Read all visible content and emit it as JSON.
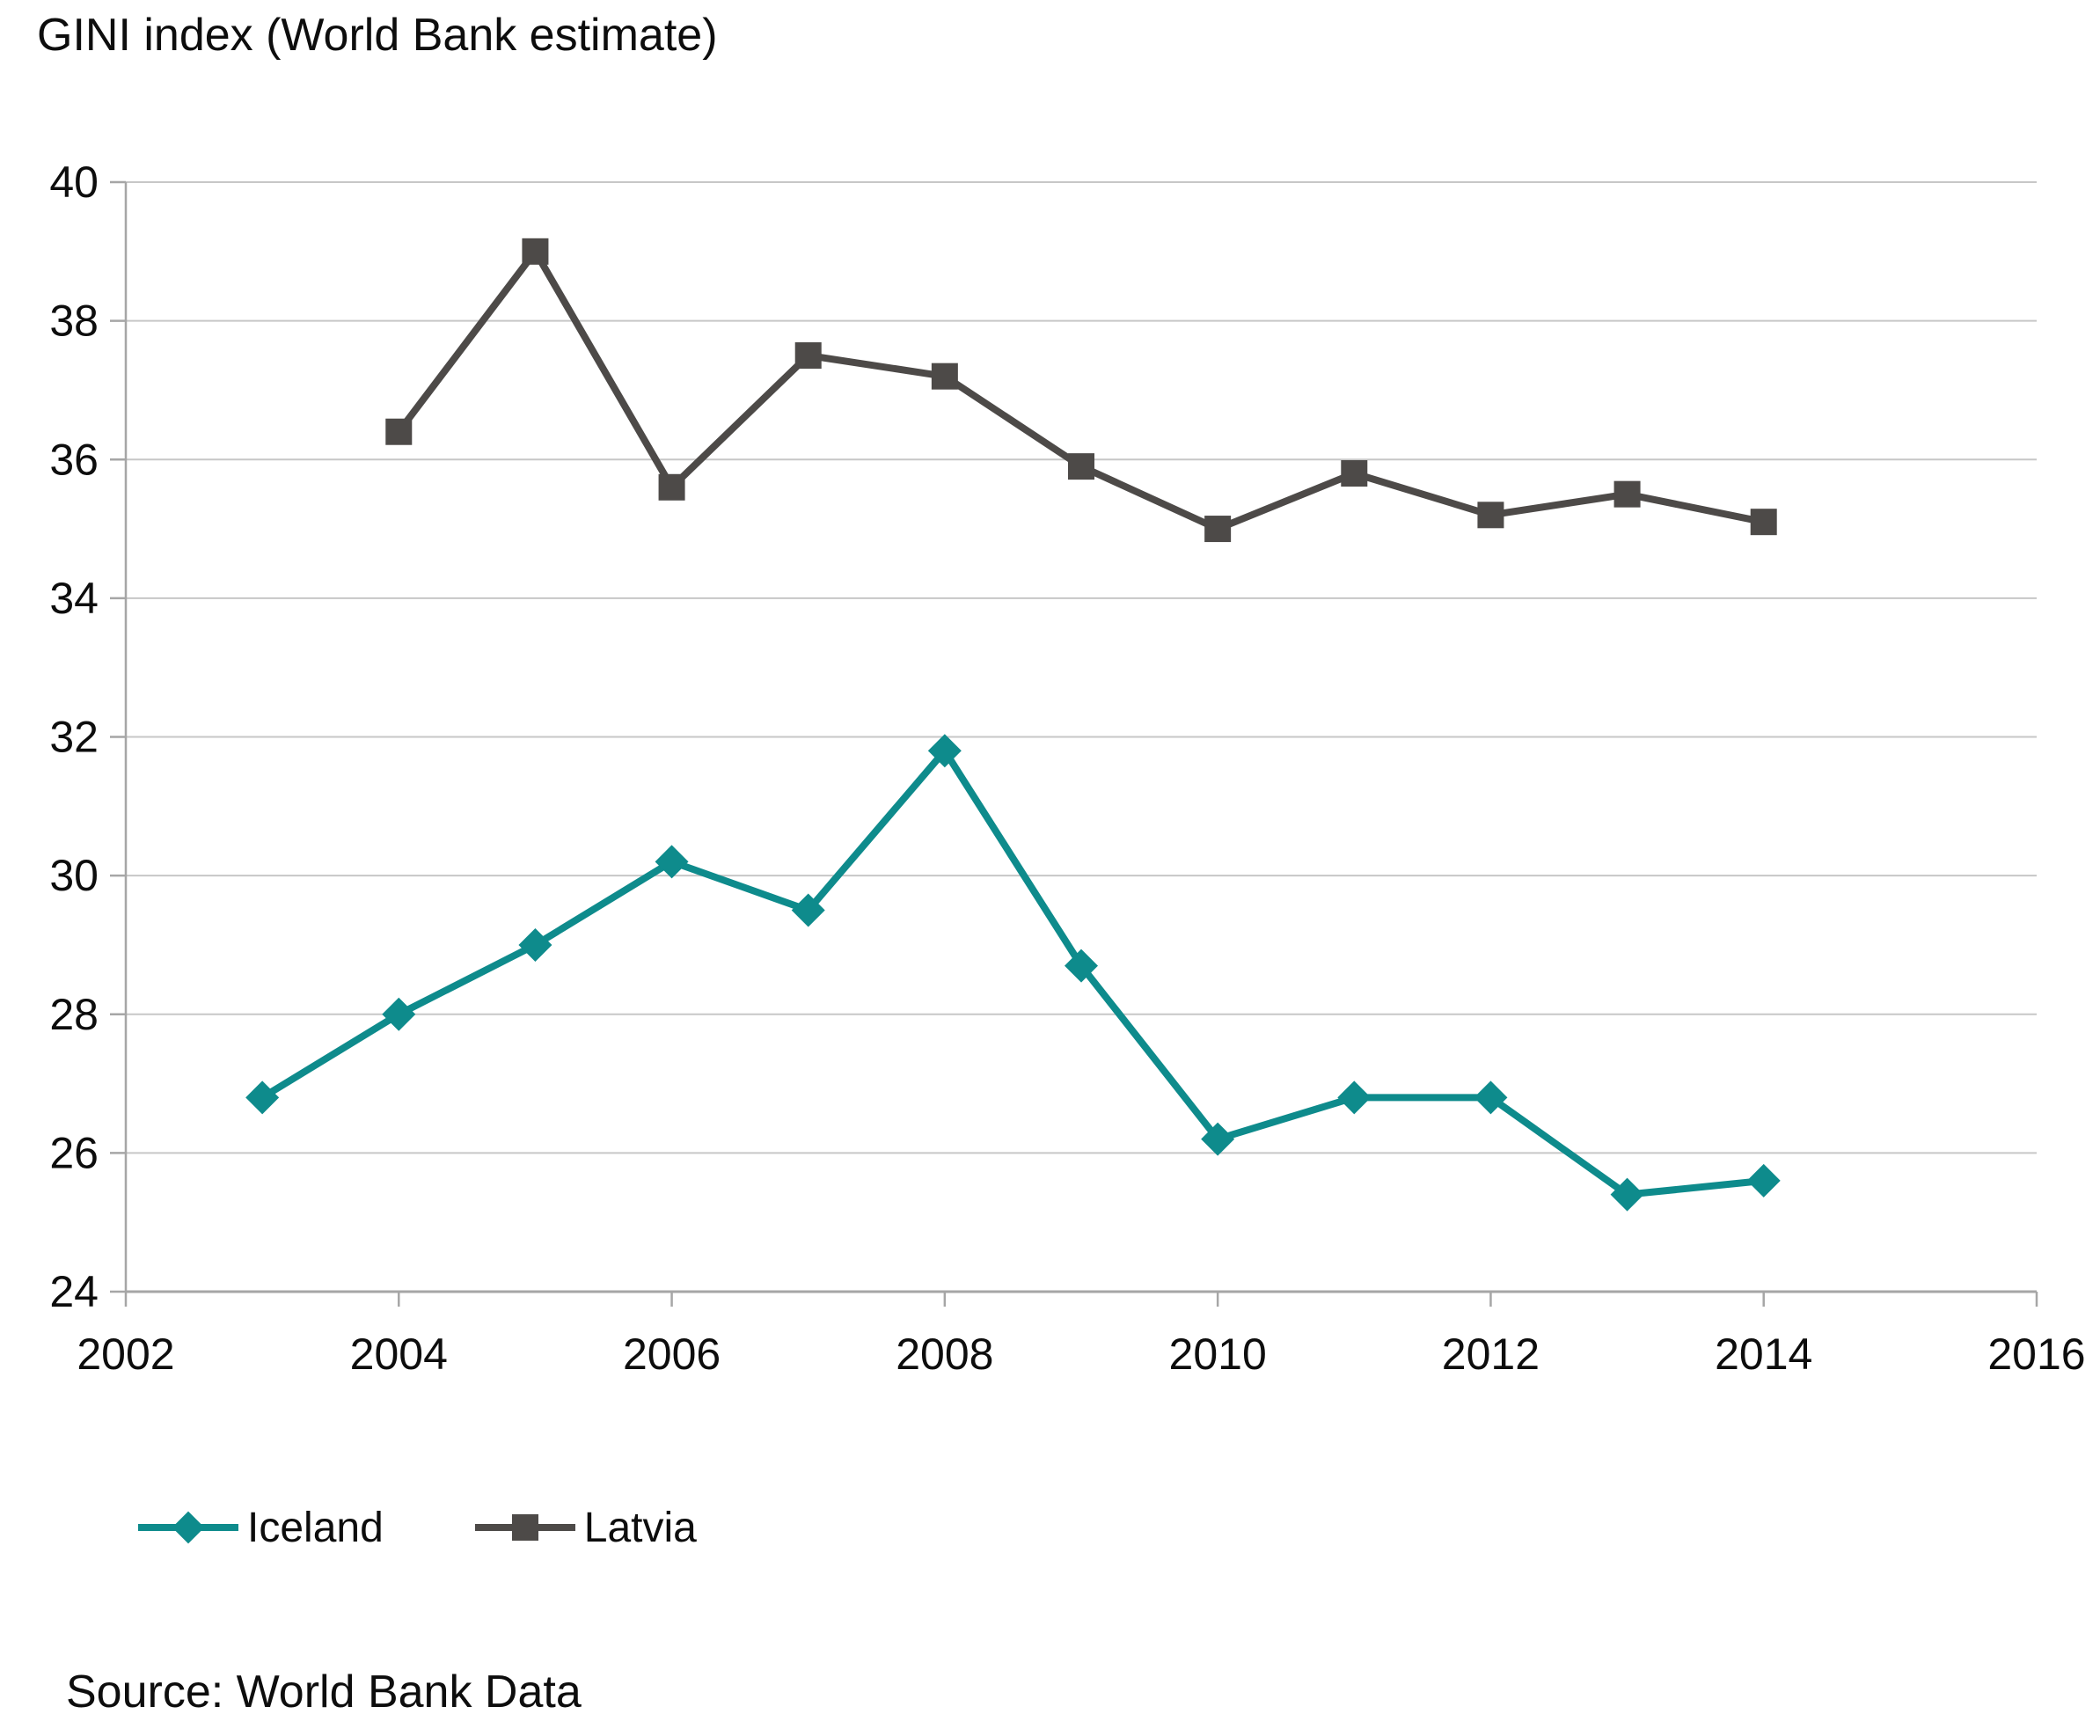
{
  "page": {
    "title": "GINI index (World Bank estimate)",
    "source": "Source: World Bank Data"
  },
  "colors": {
    "iceland": "#0e8b8c",
    "latvia": "#4d4a48",
    "gridline": "#c7c7c7",
    "axis": "#a6a6a6",
    "text": "#0d0d0d",
    "background": "#ffffff"
  },
  "legend": {
    "items": [
      {
        "label": "Iceland",
        "marker": "diamond",
        "color": "#0e8b8c"
      },
      {
        "label": "Latvia",
        "marker": "square",
        "color": "#4d4a48"
      }
    ]
  },
  "chart_data": {
    "type": "line",
    "title": "GINI index (World Bank estimate)",
    "xlabel": "",
    "ylabel": "",
    "xlim": [
      2002,
      2016
    ],
    "ylim": [
      24,
      40
    ],
    "x_ticks": [
      2002,
      2004,
      2006,
      2008,
      2010,
      2012,
      2014,
      2016
    ],
    "y_ticks": [
      24,
      26,
      28,
      30,
      32,
      34,
      36,
      38,
      40
    ],
    "grid": true,
    "legend_position": "bottom-left",
    "series": [
      {
        "name": "Iceland",
        "color": "#0e8b8c",
        "marker": "diamond",
        "x": [
          2003,
          2004,
          2005,
          2006,
          2007,
          2008,
          2009,
          2010,
          2011,
          2012,
          2013,
          2014
        ],
        "values": [
          26.8,
          28.0,
          29.0,
          30.2,
          29.5,
          31.8,
          28.7,
          26.2,
          26.8,
          26.8,
          25.4,
          25.6
        ]
      },
      {
        "name": "Latvia",
        "color": "#4d4a48",
        "marker": "square",
        "x": [
          2004,
          2005,
          2006,
          2007,
          2008,
          2009,
          2010,
          2011,
          2012,
          2013,
          2014
        ],
        "values": [
          36.4,
          39.0,
          35.6,
          37.5,
          37.2,
          35.9,
          35.0,
          35.8,
          35.2,
          35.5,
          35.1
        ]
      }
    ]
  }
}
